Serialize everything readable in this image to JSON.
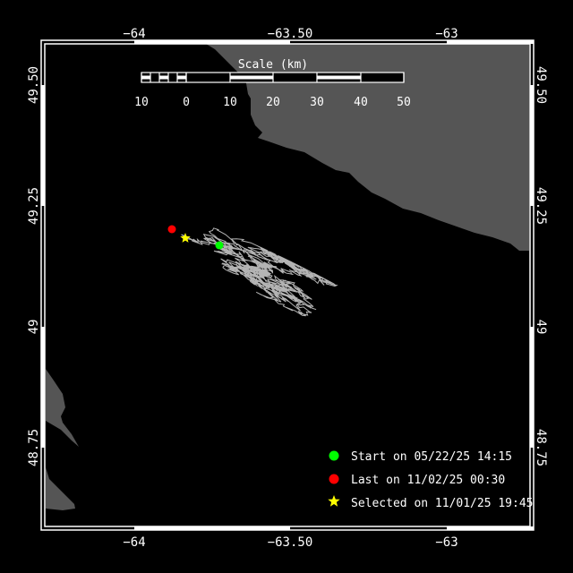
{
  "colors": {
    "background": "#000000",
    "land": "#555555",
    "track": "#b4b4b4",
    "start": "#00ff00",
    "last": "#ff0000",
    "selected": "#ffff00",
    "frame": "#ffffff"
  },
  "axes": {
    "lon_ticks": [
      "−64",
      "−63.50",
      "−63"
    ],
    "lat_ticks": [
      "49.50",
      "49.25",
      "49",
      "48.75"
    ]
  },
  "scale": {
    "title": "Scale (km)",
    "labels": [
      "10",
      "0",
      "10",
      "20",
      "30",
      "40",
      "50"
    ]
  },
  "legend": [
    {
      "icon": "green-dot-icon",
      "label": "Start on 05/22/25 14:15"
    },
    {
      "icon": "red-dot-icon",
      "label": "Last on 11/02/25 00:30"
    },
    {
      "icon": "yellow-star-icon",
      "label": "Selected on 11/01/25 19:45"
    }
  ]
}
